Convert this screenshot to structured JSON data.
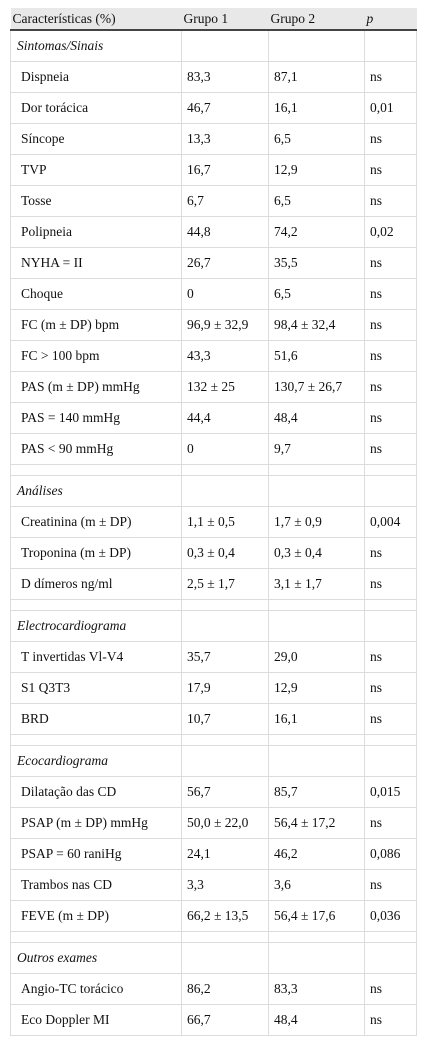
{
  "table": {
    "header": [
      "Características (%)",
      "Grupo 1",
      "Grupo 2",
      "p"
    ],
    "sections": [
      {
        "title": "Sintomas/Sinais",
        "rows": [
          [
            "Dispneia",
            "83,3",
            "87,1",
            "ns"
          ],
          [
            "Dor torácica",
            "46,7",
            "16,1",
            "0,01"
          ],
          [
            "Síncope",
            "13,3",
            "6,5",
            "ns"
          ],
          [
            "TVP",
            "16,7",
            "12,9",
            "ns"
          ],
          [
            "Tosse",
            "6,7",
            "6,5",
            "ns"
          ],
          [
            "Polipneia",
            "44,8",
            "74,2",
            "0,02"
          ],
          [
            "NYHA = II",
            "26,7",
            "35,5",
            "ns"
          ],
          [
            "Choque",
            "0",
            "6,5",
            "ns"
          ],
          [
            "FC (m ± DP) bpm",
            "96,9 ± 32,9",
            "98,4 ± 32,4",
            "ns"
          ],
          [
            "FC > 100 bpm",
            "43,3",
            "51,6",
            "ns"
          ],
          [
            "PAS (m ± DP) mmHg",
            "132 ± 25",
            "130,7 ± 26,7",
            "ns"
          ],
          [
            "PAS = 140 mmHg",
            "44,4",
            "48,4",
            "ns"
          ],
          [
            "PAS < 90 mmHg",
            "0",
            "9,7",
            "ns"
          ]
        ]
      },
      {
        "title": "Análises",
        "rows": [
          [
            "Creatinina (m ± DP)",
            "1,1 ± 0,5",
            "1,7 ± 0,9",
            "0,004"
          ],
          [
            "Troponina (m ± DP)",
            "0,3 ± 0,4",
            "0,3 ± 0,4",
            "ns"
          ],
          [
            "D dímeros ng/ml",
            "2,5 ± 1,7",
            "3,1 ± 1,7",
            "ns"
          ]
        ]
      },
      {
        "title": "Electrocardiograma",
        "rows": [
          [
            "T invertidas Vl-V4",
            "35,7",
            "29,0",
            "ns"
          ],
          [
            "S1 Q3T3",
            "17,9",
            "12,9",
            "ns"
          ],
          [
            "BRD",
            "10,7",
            "16,1",
            "ns"
          ]
        ]
      },
      {
        "title": "Ecocardiograma",
        "rows": [
          [
            "Dilatação das CD",
            "56,7",
            "85,7",
            "0,015"
          ],
          [
            "PSAP (m ± DP) mmHg",
            "50,0 ± 22,0",
            "56,4 ± 17,2",
            "ns"
          ],
          [
            "PSAP = 60 raniHg",
            "24,1",
            "46,2",
            "0,086"
          ],
          [
            "Trambos nas CD",
            "3,3",
            "3,6",
            "ns"
          ],
          [
            "FEVE (m ± DP)",
            "66,2 ± 13,5",
            "56,4 ± 17,6",
            "0,036"
          ]
        ]
      },
      {
        "title": "Outros exames",
        "rows": [
          [
            "Angio-TC torácico",
            "86,2",
            "83,3",
            "ns"
          ],
          [
            "Eco Doppler MI",
            "66,7",
            "48,4",
            "ns"
          ]
        ]
      }
    ]
  }
}
